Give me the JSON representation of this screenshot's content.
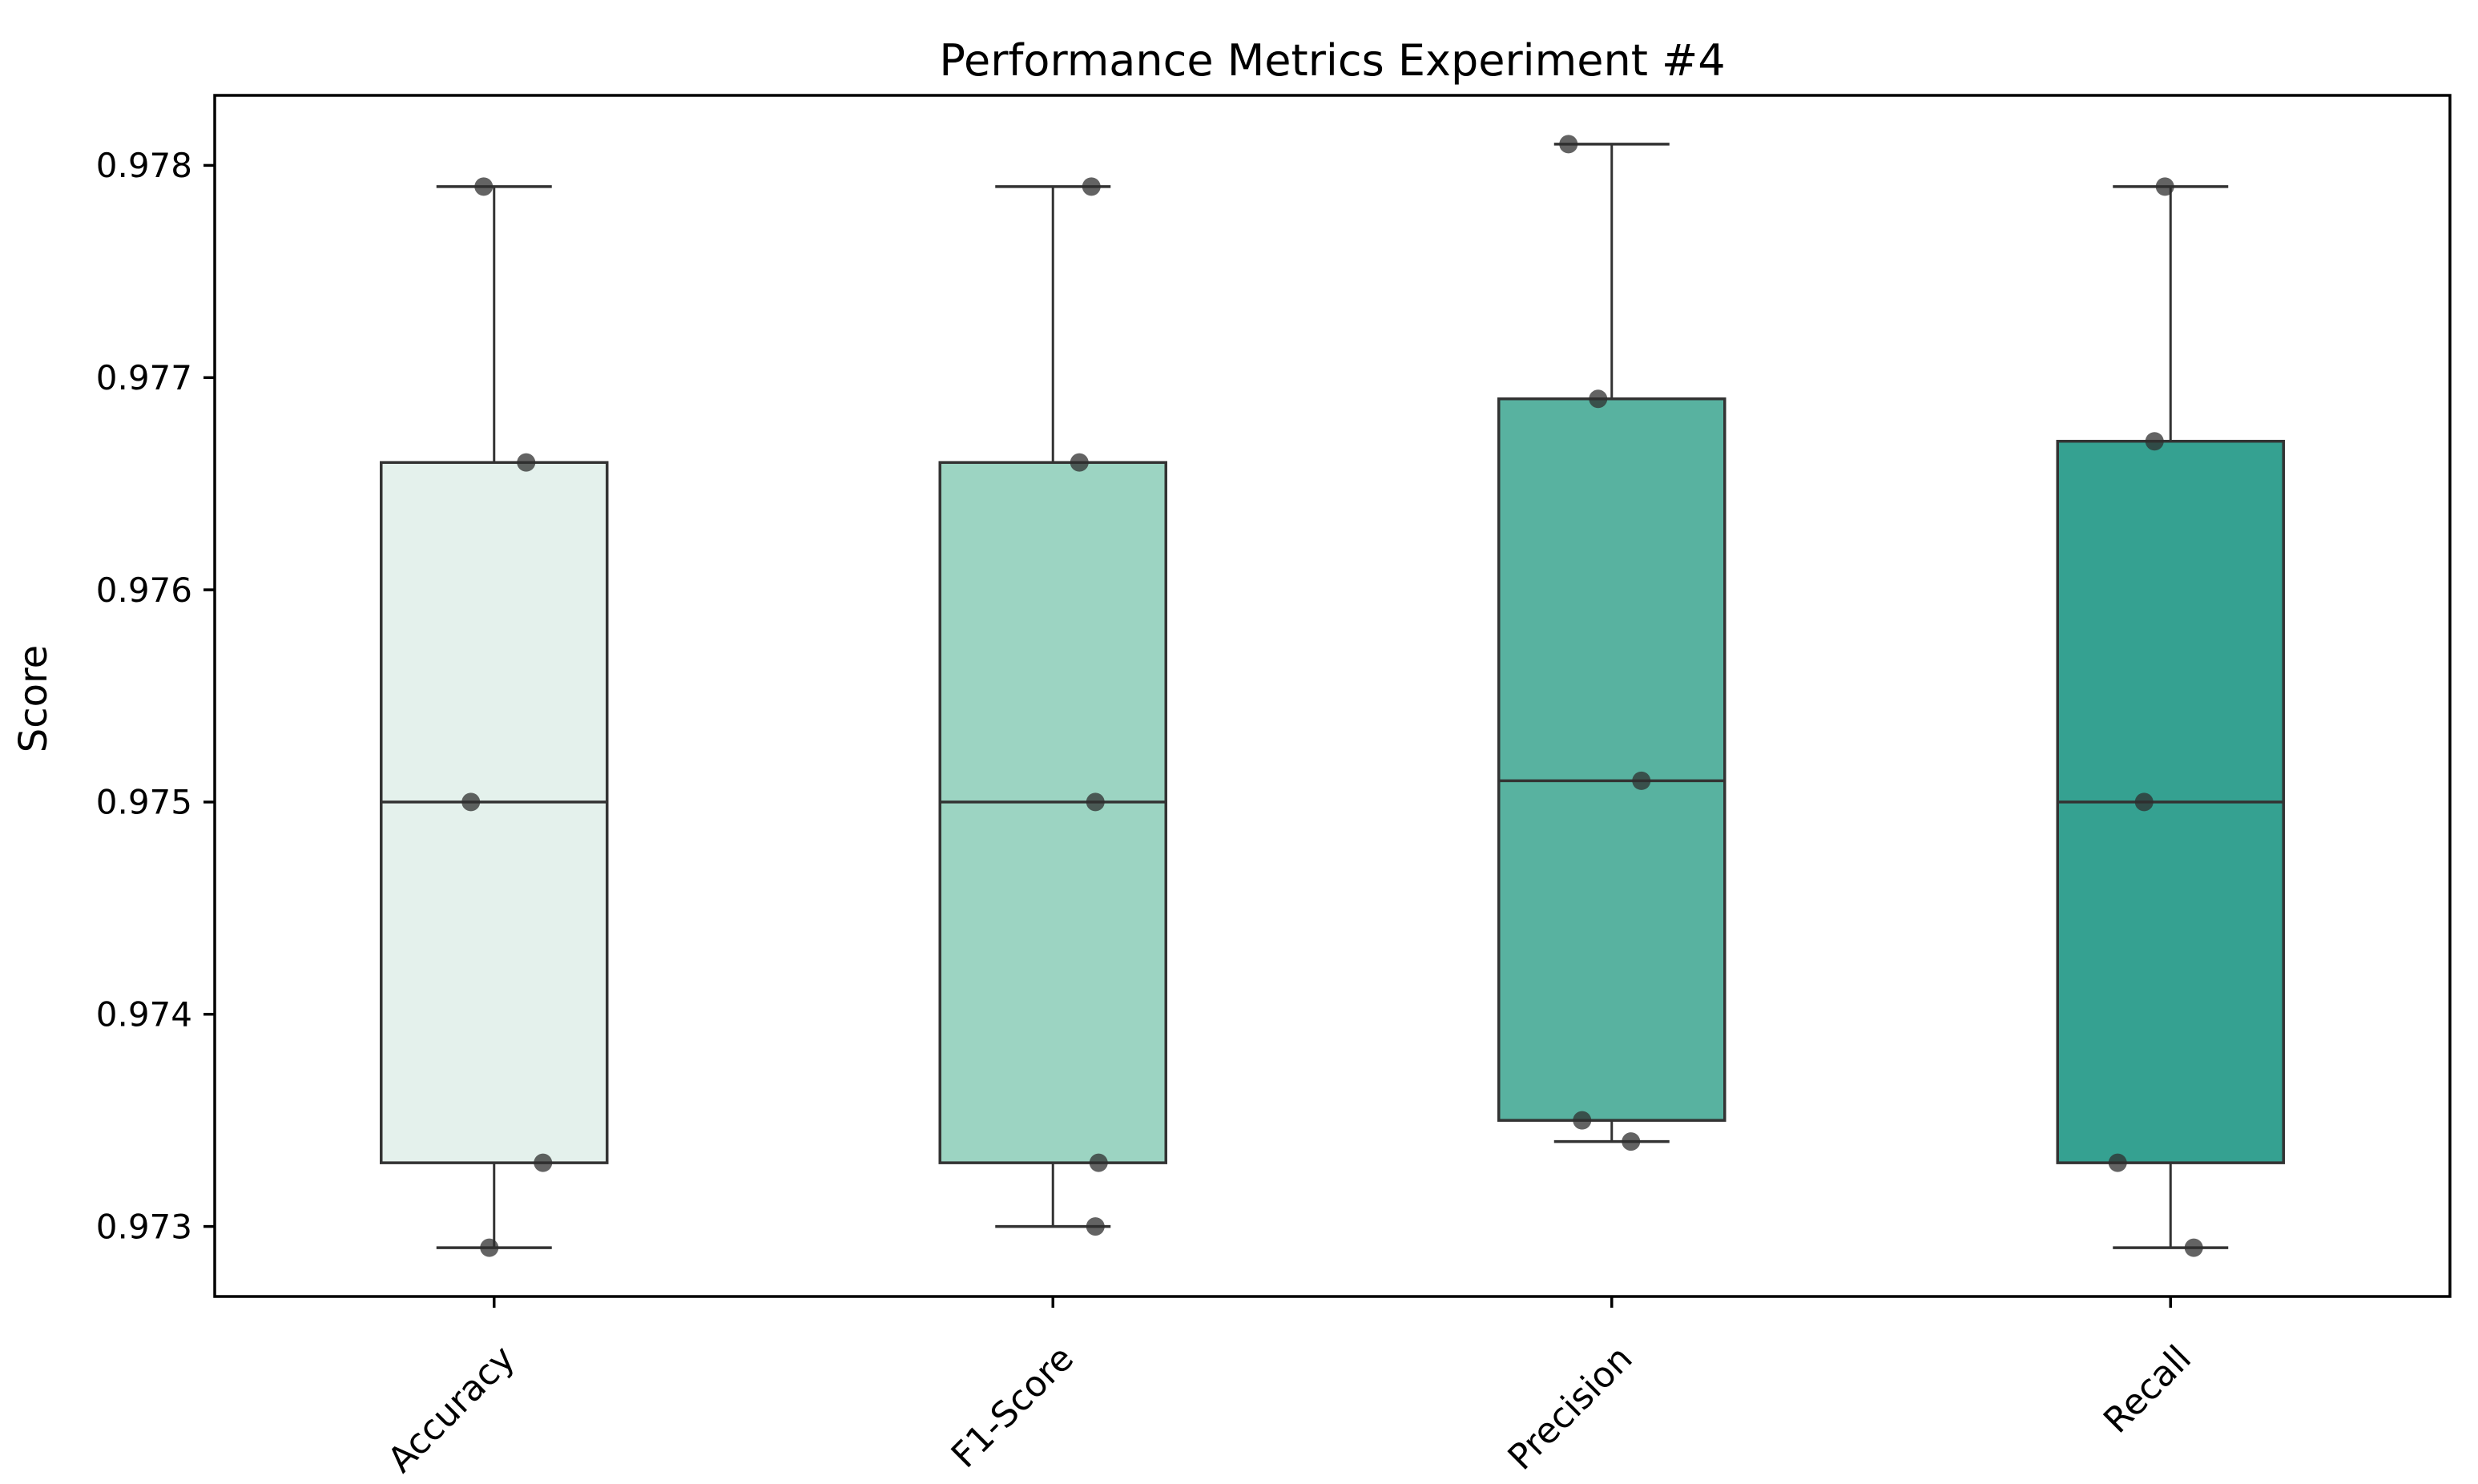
{
  "chart_data": {
    "type": "box",
    "title": "Performance Metrics Experiment #4",
    "xlabel": "",
    "ylabel": "Score",
    "ylim": [
      0.97267,
      0.97833
    ],
    "grid": false,
    "legend": null,
    "background_color": "#ffffff",
    "spine_color": "#000000",
    "box_edge_color": "#333333",
    "point_color": "#2f2f2f",
    "point_opacity": 0.75,
    "yticks": [
      {
        "value": 0.973,
        "label": "0.973"
      },
      {
        "value": 0.974,
        "label": "0.974"
      },
      {
        "value": 0.975,
        "label": "0.975"
      },
      {
        "value": 0.976,
        "label": "0.976"
      },
      {
        "value": 0.977,
        "label": "0.977"
      },
      {
        "value": 0.978,
        "label": "0.978"
      }
    ],
    "categories": [
      "Accuracy",
      "F1-Score",
      "Precision",
      "Recall"
    ],
    "series": [
      {
        "name": "Accuracy",
        "fill": "#e4f1ec",
        "whisker_low": 0.9729,
        "q1": 0.9733,
        "median": 0.975,
        "q3": 0.9766,
        "whisker_high": 0.9779,
        "points": [
          {
            "value": 0.9779,
            "jitter": -13
          },
          {
            "value": 0.9766,
            "jitter": 40
          },
          {
            "value": 0.975,
            "jitter": -29
          },
          {
            "value": 0.9733,
            "jitter": 61
          },
          {
            "value": 0.9729,
            "jitter": -6
          }
        ]
      },
      {
        "name": "F1-Score",
        "fill": "#9cd4c2",
        "whisker_low": 0.973,
        "q1": 0.9733,
        "median": 0.975,
        "q3": 0.9766,
        "whisker_high": 0.9779,
        "points": [
          {
            "value": 0.9779,
            "jitter": 48
          },
          {
            "value": 0.9766,
            "jitter": 33
          },
          {
            "value": 0.975,
            "jitter": 53
          },
          {
            "value": 0.9733,
            "jitter": 57
          },
          {
            "value": 0.973,
            "jitter": 53
          }
        ]
      },
      {
        "name": "Precision",
        "fill": "#58b2a0",
        "whisker_low": 0.9734,
        "q1": 0.9735,
        "median": 0.9751,
        "q3": 0.9769,
        "whisker_high": 0.9781,
        "points": [
          {
            "value": 0.9781,
            "jitter": -54
          },
          {
            "value": 0.9769,
            "jitter": -17
          },
          {
            "value": 0.9751,
            "jitter": 37
          },
          {
            "value": 0.9735,
            "jitter": -37
          },
          {
            "value": 0.9734,
            "jitter": 24
          }
        ]
      },
      {
        "name": "Recall",
        "fill": "#35a191",
        "whisker_low": 0.9729,
        "q1": 0.9733,
        "median": 0.975,
        "q3": 0.9767,
        "whisker_high": 0.9779,
        "points": [
          {
            "value": 0.9779,
            "jitter": -7
          },
          {
            "value": 0.9767,
            "jitter": -20
          },
          {
            "value": 0.975,
            "jitter": -33
          },
          {
            "value": 0.9733,
            "jitter": -66
          },
          {
            "value": 0.9729,
            "jitter": 29
          }
        ]
      }
    ]
  }
}
